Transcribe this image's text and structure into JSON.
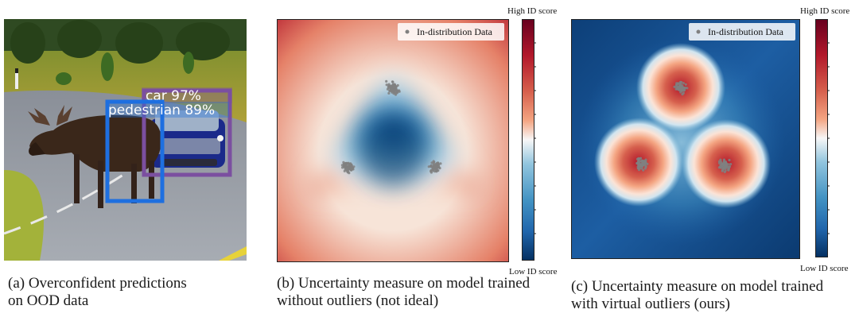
{
  "figure": {
    "panel_a": {
      "detections": [
        {
          "label": "car 97%",
          "color": "#7b4fa0"
        },
        {
          "label": "pedestrian 89%",
          "color": "#1e6fe0"
        }
      ],
      "caption_line1": "(a) Overconfident predictions",
      "caption_line2": "on OOD data"
    },
    "panel_b": {
      "legend": "In-distribution Data",
      "colorbar_high": "High ID score",
      "colorbar_low": "Low ID score",
      "caption_line1": "(b) Uncertainty measure on model trained",
      "caption_line2": "without outliers (not ideal)"
    },
    "panel_c": {
      "legend": "In-distribution Data",
      "colorbar_high": "High ID score",
      "colorbar_low": "Low ID score",
      "caption_line1": "(c) Uncertainty measure on model trained",
      "caption_line2": "with virtual outliers (ours)"
    }
  },
  "colors": {
    "high": "#b2182b",
    "mid": "#f7f7f7",
    "low": "#053061",
    "points": "#808080"
  }
}
